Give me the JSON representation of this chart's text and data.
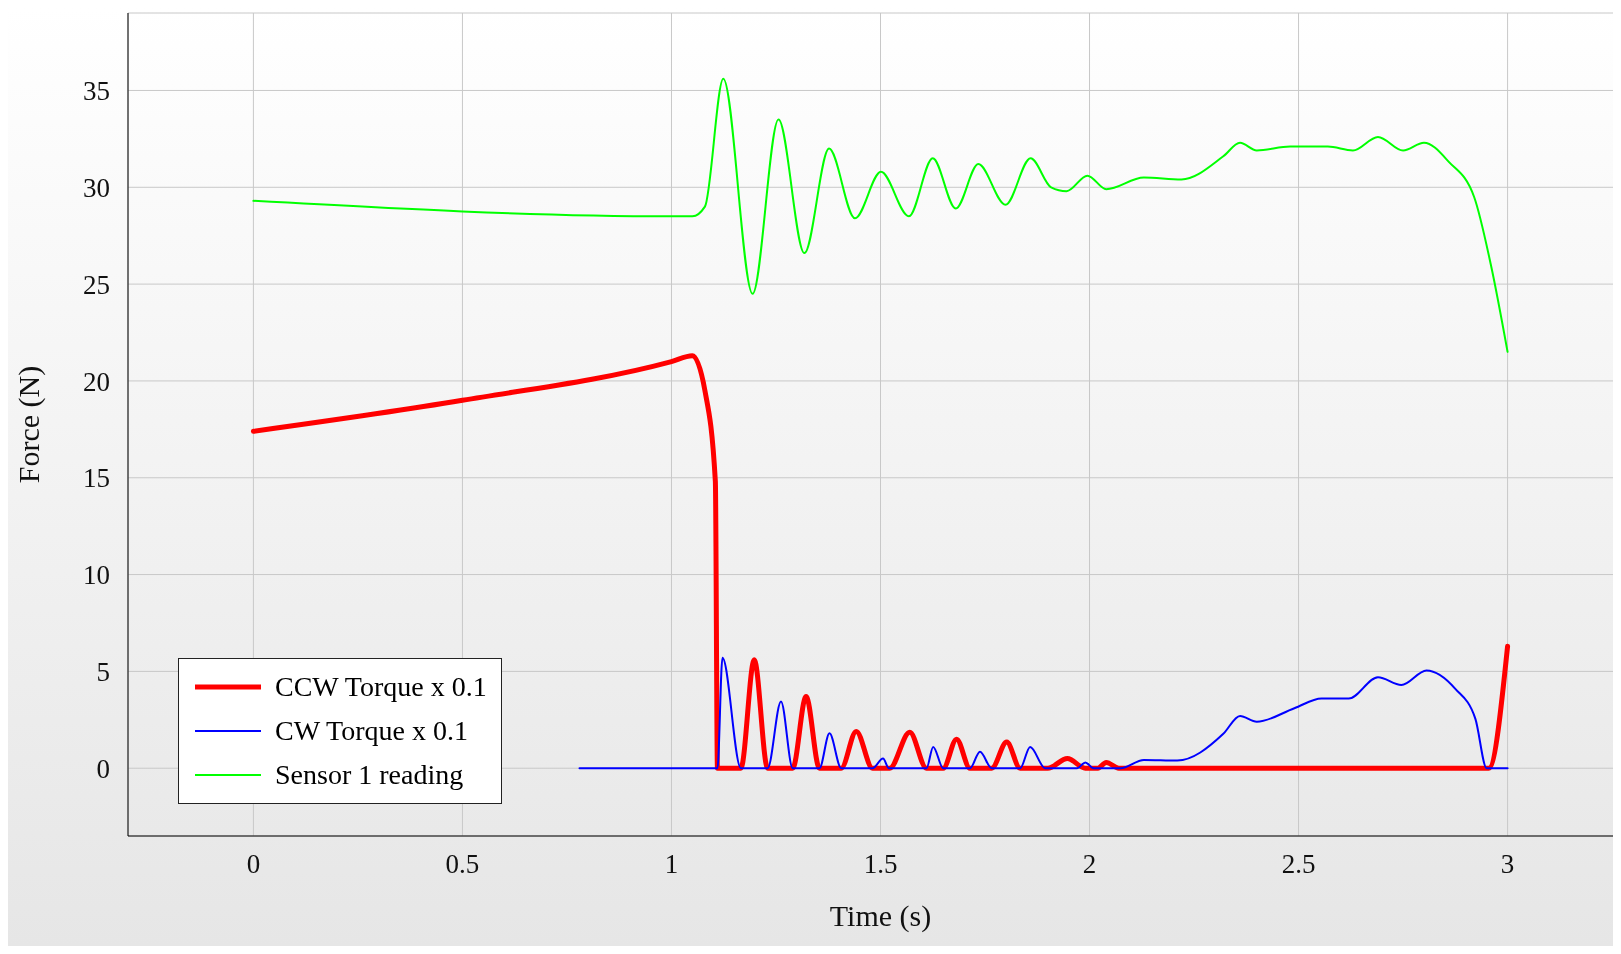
{
  "chart_data": {
    "type": "line",
    "xlabel": "Time (s)",
    "ylabel": "Force (N)",
    "xlim": [
      -0.3,
      3.3
    ],
    "ylim": [
      -3.5,
      39
    ],
    "xticks": [
      0,
      {
        "value": 0.5,
        "label": "0.5"
      },
      1,
      {
        "value": 1.5,
        "label": "1.5"
      },
      2,
      {
        "value": 2.5,
        "label": "2.5"
      },
      3
    ],
    "yticks": [
      0,
      5,
      10,
      15,
      20,
      25,
      30,
      35
    ],
    "grid": true,
    "legend": "bottom left",
    "marker": "none",
    "line_style": "solid",
    "series": [
      {
        "name": "CCW Torque x 0.1",
        "color": "#ff0000",
        "x": [
          0,
          0.5,
          1,
          1.05,
          1.08,
          1.105,
          1.11,
          1.166,
          1.198,
          1.23,
          1.29,
          1.322,
          1.354,
          1.406,
          1.442,
          1.481,
          1.522,
          1.57,
          1.61,
          1.65,
          1.682,
          1.714,
          1.766,
          1.802,
          1.834,
          1.9,
          1.947,
          1.99,
          2.02,
          2.04,
          2.07,
          2.955,
          3
        ],
        "values": [
          17.4,
          19.0,
          21.0,
          21.3,
          19.5,
          14.8,
          0,
          0,
          5.6,
          0,
          0,
          3.7,
          0,
          0,
          1.9,
          0,
          0,
          1.86,
          0,
          0,
          1.5,
          0,
          0,
          1.35,
          0,
          0,
          0.5,
          0,
          0,
          0.3,
          0,
          0,
          6.3
        ]
      },
      {
        "name": "CW Torque x 0.1",
        "color": "#0000ff",
        "x": [
          0.78,
          1.11,
          1.122,
          1.166,
          1.23,
          1.262,
          1.29,
          1.354,
          1.378,
          1.406,
          1.481,
          1.506,
          1.52,
          1.61,
          1.626,
          1.65,
          1.714,
          1.738,
          1.766,
          1.834,
          1.858,
          1.894,
          1.97,
          1.99,
          2.01,
          2.074,
          2.13,
          2.21,
          2.32,
          2.36,
          2.4,
          2.49,
          2.555,
          2.62,
          2.69,
          2.746,
          2.806,
          2.875,
          2.923,
          2.95,
          3
        ],
        "values": [
          0,
          0,
          5.7,
          0,
          0,
          3.45,
          0,
          0,
          1.8,
          0,
          0,
          0.5,
          0,
          0,
          1.1,
          0,
          0,
          0.85,
          0,
          0,
          1.1,
          0,
          0,
          0.3,
          0,
          0,
          0.43,
          0.4,
          1.78,
          2.7,
          2.4,
          3.1,
          3.6,
          3.6,
          4.7,
          4.3,
          5.05,
          4.1,
          2.55,
          0,
          0
        ]
      },
      {
        "name": "Sensor 1 reading",
        "color": "#00ff00",
        "x": [
          0,
          1,
          1.05,
          1.08,
          1.124,
          1.194,
          1.256,
          1.318,
          1.377,
          1.439,
          1.501,
          1.568,
          1.625,
          1.68,
          1.734,
          1.799,
          1.859,
          1.908,
          1.945,
          1.995,
          2.04,
          2.13,
          2.22,
          2.32,
          2.36,
          2.4,
          2.48,
          2.57,
          2.63,
          2.69,
          2.75,
          2.8,
          2.86,
          2.92,
          2.96,
          3
        ],
        "values": [
          29.3,
          28.5,
          28.5,
          29,
          35.6,
          24.5,
          33.5,
          26.6,
          32.0,
          28.4,
          30.8,
          28.5,
          31.5,
          28.9,
          31.2,
          29.1,
          31.5,
          30.0,
          29.8,
          30.6,
          29.9,
          30.5,
          30.4,
          31.6,
          32.3,
          31.9,
          32.1,
          32.1,
          31.9,
          32.6,
          31.9,
          32.3,
          31.3,
          29.5,
          26,
          21.5
        ]
      }
    ]
  }
}
